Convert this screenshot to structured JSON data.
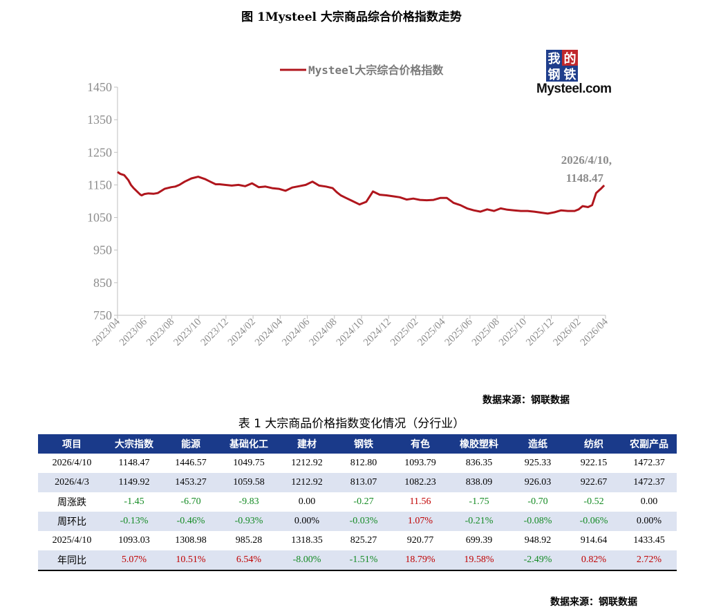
{
  "figure_title": "图 1Mysteel 大宗商品综合价格指数走势",
  "logo": {
    "chars": [
      "我",
      "的",
      "钢",
      "铁"
    ],
    "word": "Mysteel.com",
    "colors": [
      "#1f3e8c",
      "#c0282d",
      "#1f3e8c",
      "#1f3e8c"
    ]
  },
  "chart_data": {
    "type": "line",
    "ylim": [
      750,
      1450
    ],
    "yticks": [
      "750",
      "850",
      "950",
      "1050",
      "1150",
      "1250",
      "1350",
      "1450"
    ],
    "xticks": [
      "2023/04",
      "2023/06",
      "2023/08",
      "2023/10",
      "2023/12",
      "2024/02",
      "2024/04",
      "2024/06",
      "2024/08",
      "2024/10",
      "2024/12",
      "2025/02",
      "2025/04",
      "2025/06",
      "2025/08",
      "2025/10",
      "2025/12",
      "2026/02",
      "2026/04"
    ],
    "xlim": [
      0,
      36.3
    ],
    "grid": false,
    "legend_position": "top",
    "series": [
      {
        "name": "Mysteel大宗综合价格指数",
        "color": "#b0161d",
        "x": [
          0,
          0.2,
          0.5,
          0.8,
          1.0,
          1.2,
          1.5,
          1.7,
          1.8,
          2.0,
          2.3,
          2.7,
          3.0,
          3.5,
          4.0,
          4.3,
          4.6,
          5.0,
          5.5,
          6.0,
          6.5,
          6.8,
          7.0,
          7.3,
          7.6,
          8.0,
          8.5,
          9.0,
          9.5,
          10.0,
          10.5,
          11.0,
          11.5,
          12.0,
          12.5,
          13.0,
          13.5,
          14.0,
          14.5,
          15.0,
          15.5,
          16.0,
          16.3,
          16.6,
          17.0,
          17.5,
          18.0,
          18.5,
          19.0,
          19.5,
          20.0,
          20.5,
          21.0,
          21.5,
          22.0,
          22.5,
          23.0,
          23.5,
          24.0,
          24.5,
          25.0,
          25.5,
          26.0,
          26.5,
          27.0,
          27.5,
          28.0,
          28.5,
          29.0,
          29.5,
          30.0,
          30.5,
          31.0,
          31.5,
          32.0,
          32.5,
          33.0,
          33.5,
          34.0,
          34.3,
          34.6,
          35.0,
          35.3,
          35.6,
          36.0,
          36.2
        ],
        "values": [
          1190,
          1184,
          1180,
          1165,
          1150,
          1140,
          1128,
          1120,
          1118,
          1122,
          1124,
          1123,
          1125,
          1138,
          1143,
          1145,
          1150,
          1160,
          1170,
          1175,
          1168,
          1162,
          1158,
          1152,
          1152,
          1150,
          1148,
          1150,
          1146,
          1155,
          1143,
          1145,
          1140,
          1138,
          1132,
          1142,
          1146,
          1150,
          1160,
          1148,
          1145,
          1140,
          1128,
          1118,
          1110,
          1100,
          1090,
          1098,
          1130,
          1120,
          1118,
          1115,
          1112,
          1105,
          1108,
          1104,
          1103,
          1104,
          1110,
          1110,
          1095,
          1088,
          1078,
          1072,
          1068,
          1075,
          1070,
          1078,
          1074,
          1072,
          1070,
          1070,
          1068,
          1065,
          1062,
          1066,
          1072,
          1070,
          1070,
          1075,
          1085,
          1082,
          1088,
          1125,
          1140,
          1148.47
        ]
      }
    ],
    "annotations": [
      {
        "x": "2026/4/10,",
        "y": "1148.47"
      }
    ]
  },
  "source_label": "数据来源：钢联数据",
  "table": {
    "title": "表 1 大宗商品价格指数变化情况（分行业）",
    "headers": [
      "项目",
      "大宗指数",
      "能源",
      "基础化工",
      "建材",
      "钢铁",
      "有色",
      "橡胶塑料",
      "造纸",
      "纺织",
      "农副产品"
    ],
    "rows": [
      {
        "label": "2026/4/10",
        "cells": [
          "1148.47",
          "1446.57",
          "1049.75",
          "1212.92",
          "812.80",
          "1093.79",
          "836.35",
          "925.33",
          "922.15",
          "1472.37"
        ]
      },
      {
        "label": "2026/4/3",
        "cells": [
          "1149.92",
          "1453.27",
          "1059.58",
          "1212.92",
          "813.07",
          "1082.23",
          "838.09",
          "926.03",
          "922.67",
          "1472.37"
        ]
      },
      {
        "label": "周涨跌",
        "cells": [
          "-1.45",
          "-6.70",
          "-9.83",
          "0.00",
          "-0.27",
          "11.56",
          "-1.75",
          "-0.70",
          "-0.52",
          "0.00"
        ]
      },
      {
        "label": "周环比",
        "cells": [
          "-0.13%",
          "-0.46%",
          "-0.93%",
          "0.00%",
          "-0.03%",
          "1.07%",
          "-0.21%",
          "-0.08%",
          "-0.06%",
          "0.00%"
        ]
      },
      {
        "label": "2025/4/10",
        "cells": [
          "1093.03",
          "1308.98",
          "985.28",
          "1318.35",
          "825.27",
          "920.77",
          "699.39",
          "948.92",
          "914.64",
          "1433.45"
        ]
      },
      {
        "label": "年同比",
        "cells": [
          "5.07%",
          "10.51%",
          "6.54%",
          "-8.00%",
          "-1.51%",
          "18.79%",
          "19.58%",
          "-2.49%",
          "0.82%",
          "2.72%"
        ]
      }
    ]
  }
}
